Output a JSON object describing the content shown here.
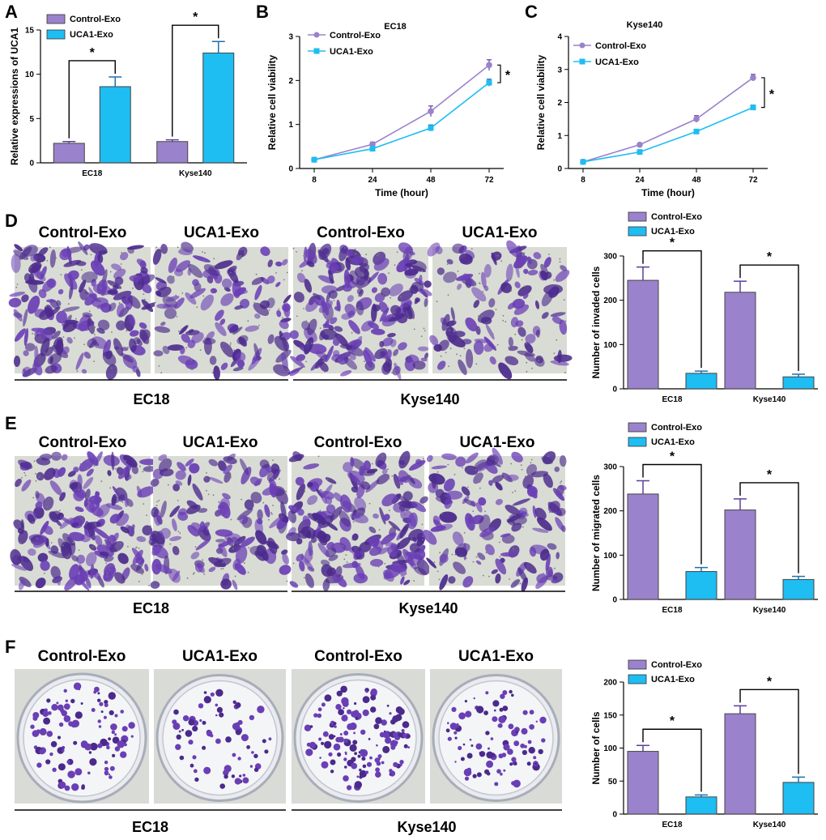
{
  "colors": {
    "control": "#9b82cc",
    "uca1": "#1ebdf2",
    "error_control": "#5b3f9a",
    "error_uca1": "#1f6fb0",
    "stain": "#6a3fb5",
    "stain_dark": "#4b2a8c",
    "well_bg": "#d8dbd6"
  },
  "panel_labels": [
    "A",
    "B",
    "C",
    "D",
    "E",
    "F"
  ],
  "images": {
    "D": {
      "titles": [
        "Control-Exo",
        "UCA1-Exo",
        "Control-Exo",
        "UCA1-Exo"
      ],
      "groups": [
        "EC18",
        "Kyse140"
      ],
      "density": [
        0.9,
        0.45,
        0.95,
        0.35
      ],
      "kind": "transwell"
    },
    "E": {
      "titles": [
        "Control-Exo",
        "UCA1-Exo",
        "Control-Exo",
        "UCA1-Exo"
      ],
      "groups": [
        "EC18",
        "Kyse140"
      ],
      "density": [
        0.9,
        0.55,
        0.95,
        0.5
      ],
      "kind": "transwell"
    },
    "F": {
      "titles": [
        "Control-Exo",
        "UCA1-Exo",
        "Control-Exo",
        "UCA1-Exo"
      ],
      "groups": [
        "EC18",
        "Kyse140"
      ],
      "density": [
        0.55,
        0.25,
        0.85,
        0.45
      ],
      "kind": "colony"
    }
  },
  "chart_data": [
    {
      "id": "A",
      "type": "bar",
      "title": "",
      "ylabel": "Relative expressions of UCA1",
      "xlabel": "",
      "ylim": [
        0,
        15
      ],
      "yticks": [
        0,
        5,
        10,
        15
      ],
      "categories": [
        "EC18",
        "Kyse140"
      ],
      "series": [
        {
          "name": "Control-Exo",
          "values": [
            2.2,
            2.4
          ],
          "errors": [
            0.2,
            0.2
          ]
        },
        {
          "name": "UCA1-Exo",
          "values": [
            8.6,
            12.4
          ],
          "errors": [
            1.1,
            1.3
          ]
        }
      ],
      "significance": [
        "*",
        "*"
      ],
      "legend": "top-left"
    },
    {
      "id": "B",
      "type": "line",
      "title": "EC18",
      "xlabel": "Time (hour)",
      "ylabel": "Relative cell viability",
      "ylim": [
        0,
        3
      ],
      "yticks": [
        0,
        1,
        2,
        3
      ],
      "x": [
        "8",
        "24",
        "48",
        "72"
      ],
      "series": [
        {
          "name": "Control-Exo",
          "values": [
            0.2,
            0.55,
            1.3,
            2.35
          ],
          "errors": [
            0.03,
            0.05,
            0.12,
            0.12
          ]
        },
        {
          "name": "UCA1-Exo",
          "values": [
            0.2,
            0.45,
            0.92,
            1.95
          ],
          "errors": [
            0.03,
            0.04,
            0.07,
            0.08
          ]
        }
      ],
      "significance": [
        "*"
      ],
      "legend": "top-left"
    },
    {
      "id": "C",
      "type": "line",
      "title": "Kyse140",
      "xlabel": "Time (hour)",
      "ylabel": "Relative cell viability",
      "ylim": [
        0,
        4
      ],
      "yticks": [
        0,
        1,
        2,
        3,
        4
      ],
      "x": [
        "8",
        "24",
        "48",
        "72"
      ],
      "series": [
        {
          "name": "Control-Exo",
          "values": [
            0.2,
            0.72,
            1.5,
            2.75
          ],
          "errors": [
            0.03,
            0.04,
            0.1,
            0.1
          ]
        },
        {
          "name": "UCA1-Exo",
          "values": [
            0.2,
            0.5,
            1.12,
            1.85
          ],
          "errors": [
            0.03,
            0.04,
            0.06,
            0.07
          ]
        }
      ],
      "significance": [
        "*"
      ],
      "legend": "top-left"
    },
    {
      "id": "D",
      "type": "bar",
      "title": "",
      "ylabel": "Number of invaded cells",
      "xlabel": "",
      "ylim": [
        0,
        300
      ],
      "yticks": [
        0,
        100,
        200,
        300
      ],
      "categories": [
        "EC18",
        "Kyse140"
      ],
      "series": [
        {
          "name": "Control-Exo",
          "values": [
            245,
            218
          ],
          "errors": [
            30,
            25
          ]
        },
        {
          "name": "UCA1-Exo",
          "values": [
            35,
            27
          ],
          "errors": [
            5,
            6
          ]
        }
      ],
      "significance": [
        "*",
        "*"
      ],
      "legend": "top-left"
    },
    {
      "id": "E",
      "type": "bar",
      "title": "",
      "ylabel": "Number of migrated cells",
      "xlabel": "",
      "ylim": [
        0,
        300
      ],
      "yticks": [
        0,
        100,
        200,
        300
      ],
      "categories": [
        "EC18",
        "Kyse140"
      ],
      "series": [
        {
          "name": "Control-Exo",
          "values": [
            238,
            202
          ],
          "errors": [
            30,
            25
          ]
        },
        {
          "name": "UCA1-Exo",
          "values": [
            63,
            45
          ],
          "errors": [
            9,
            7
          ]
        }
      ],
      "significance": [
        "*",
        "*"
      ],
      "legend": "top-left"
    },
    {
      "id": "F",
      "type": "bar",
      "title": "",
      "ylabel": "Number of cells",
      "xlabel": "",
      "ylim": [
        0,
        200
      ],
      "yticks": [
        0,
        50,
        100,
        150,
        200
      ],
      "categories": [
        "EC18",
        "Kyse140"
      ],
      "series": [
        {
          "name": "Control-Exo",
          "values": [
            95,
            152
          ],
          "errors": [
            9,
            12
          ]
        },
        {
          "name": "UCA1-Exo",
          "values": [
            26,
            48
          ],
          "errors": [
            3,
            8
          ]
        }
      ],
      "significance": [
        "*",
        "*"
      ],
      "legend": "top-left"
    }
  ]
}
